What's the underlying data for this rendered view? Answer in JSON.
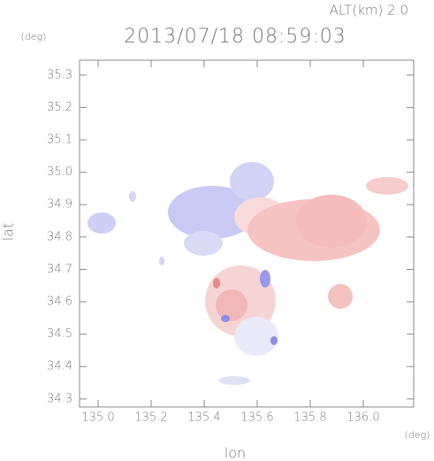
{
  "chart_data": {
    "type": "map",
    "title": "2013/07/18 08:59:03",
    "subtitle": "ALT(km) 2.0",
    "y_unit": "(deg)",
    "x_unit": "(deg)",
    "xlabel": "lon",
    "ylabel": "lat",
    "xlim": [
      134.93,
      136.19
    ],
    "ylim": [
      34.275,
      35.346
    ],
    "xticks": [
      {
        "value": 135,
        "label": "135.0"
      },
      135.2,
      135.4,
      135.6,
      135.8,
      {
        "value": 136,
        "label": "136.0"
      }
    ],
    "yticks": [
      34.3,
      34.4,
      34.5,
      34.6,
      34.7,
      34.8,
      34.9,
      {
        "value": 35,
        "label": "35.0"
      },
      35.1,
      35.2,
      35.3
    ]
  }
}
